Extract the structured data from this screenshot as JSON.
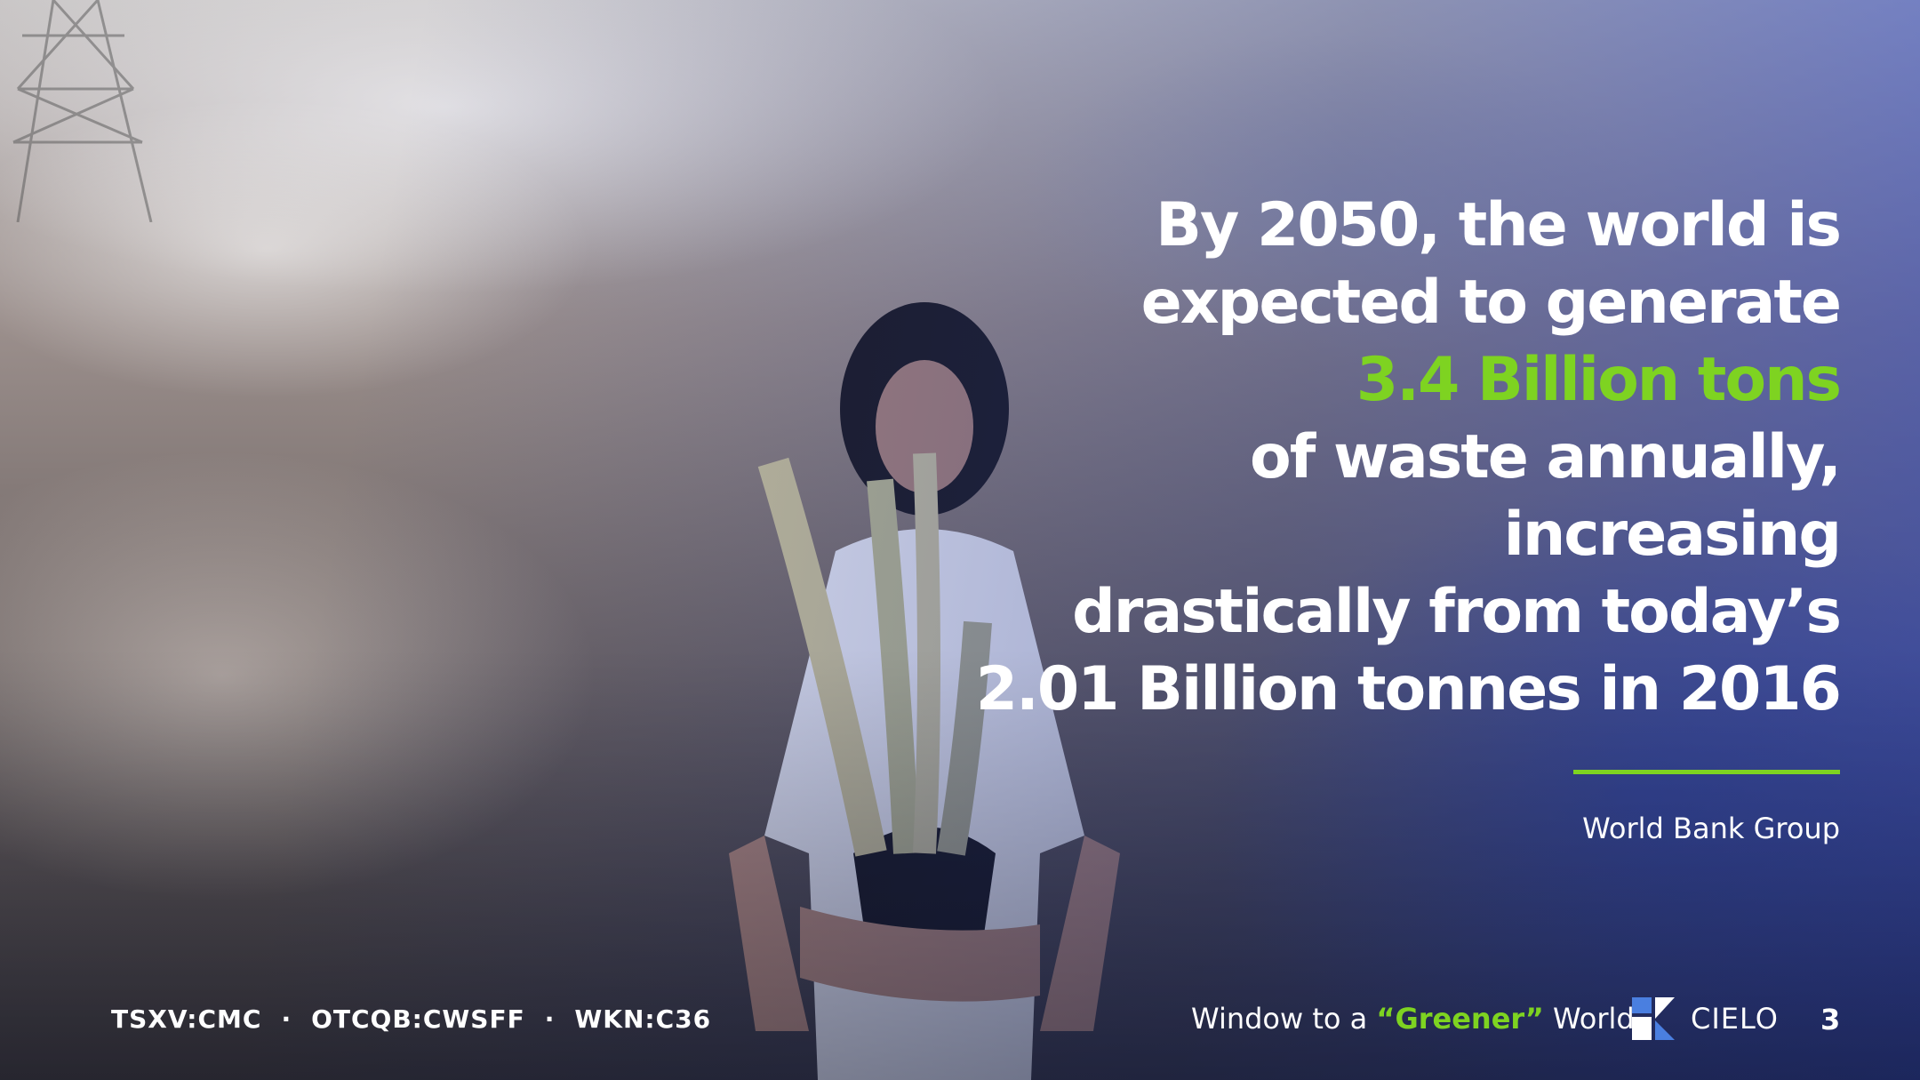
{
  "headline": {
    "line1": "By 2050, the world is",
    "line2": "expected to generate",
    "line3_highlight": "3.4 Billion tons",
    "line4": "of waste annually,",
    "line5": "increasing",
    "line6": "drastically from today’s",
    "line7": "2.01 Billion tonnes in 2016"
  },
  "source": "World Bank Group",
  "footer": {
    "ticker_tsxv": "TSXV:CMC",
    "ticker_otcqb": "OTCQB:CWSFF",
    "ticker_wkn": "WKN:C36",
    "separator": "·",
    "tagline_prefix": "Window to a ",
    "tagline_highlight": "“Greener”",
    "tagline_suffix": " World",
    "brand": "CIELO",
    "page_number": "3"
  },
  "colors": {
    "accent": "#7ed321",
    "text": "#ffffff",
    "logo": "#4a7fe0"
  },
  "icons": {
    "logo_mark": "cielo-logo-icon"
  }
}
